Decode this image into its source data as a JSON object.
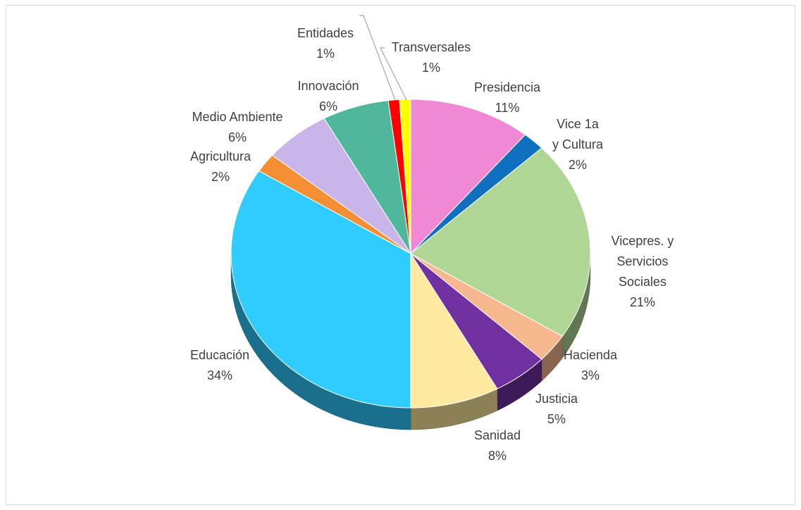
{
  "chart_data": {
    "type": "pie",
    "categories": [
      "Presidencia",
      "Vice 1a\ny Cultura",
      "Vicepres. y\nServicios\nSociales",
      "Hacienda",
      "Justicia",
      "Sanidad",
      "Educación",
      "Agricultura",
      "Medio Ambiente",
      "Innovación",
      "Entidades",
      "Transversales"
    ],
    "values": [
      11,
      2,
      21,
      3,
      5,
      8,
      34,
      2,
      6,
      6,
      1,
      1
    ],
    "value_labels": [
      "11%",
      "2%",
      "21%",
      "3%",
      "5%",
      "8%",
      "34%",
      "2%",
      "6%",
      "6%",
      "1%",
      "1%"
    ],
    "colors": [
      "#f088d6",
      "#0f70c0",
      "#b0d695",
      "#f7b88f",
      "#7030a0",
      "#ffe89f",
      "#30ccff",
      "#f58f35",
      "#c9b5ea",
      "#4fb89c",
      "#ff0000",
      "#ffff00"
    ]
  }
}
